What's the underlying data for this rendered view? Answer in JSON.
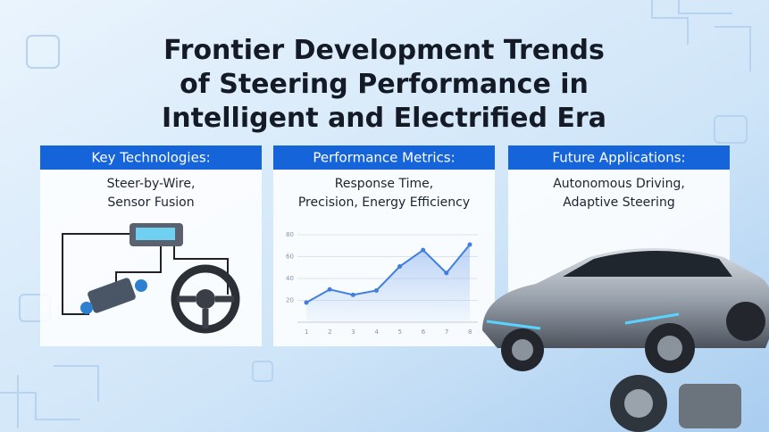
{
  "title": [
    "Frontier Development Trends",
    "of Steering Performance in",
    "Intelligent and Electrified Era"
  ],
  "panels": [
    {
      "header": "Key Technologies:",
      "body": [
        "Steer-by-Wire,",
        "Sensor Fusion"
      ]
    },
    {
      "header": "Performance Metrics:",
      "body": [
        "Response Time,",
        "Precision, Energy Efficiency"
      ],
      "chart": {
        "type": "line",
        "x": [
          1,
          2,
          3,
          4,
          5,
          6,
          7,
          8
        ],
        "xlim": [
          1,
          8
        ],
        "values": [
          18,
          30,
          25,
          29,
          51,
          66,
          45,
          71
        ],
        "color": "#3f7fe0",
        "ylim": [
          0,
          80
        ],
        "yticks": [
          20,
          40,
          60,
          80
        ],
        "grid": true
      }
    },
    {
      "header": "Future Applications:",
      "body": [
        "Autonomous Driving,",
        "Adaptive Steering"
      ]
    }
  ]
}
